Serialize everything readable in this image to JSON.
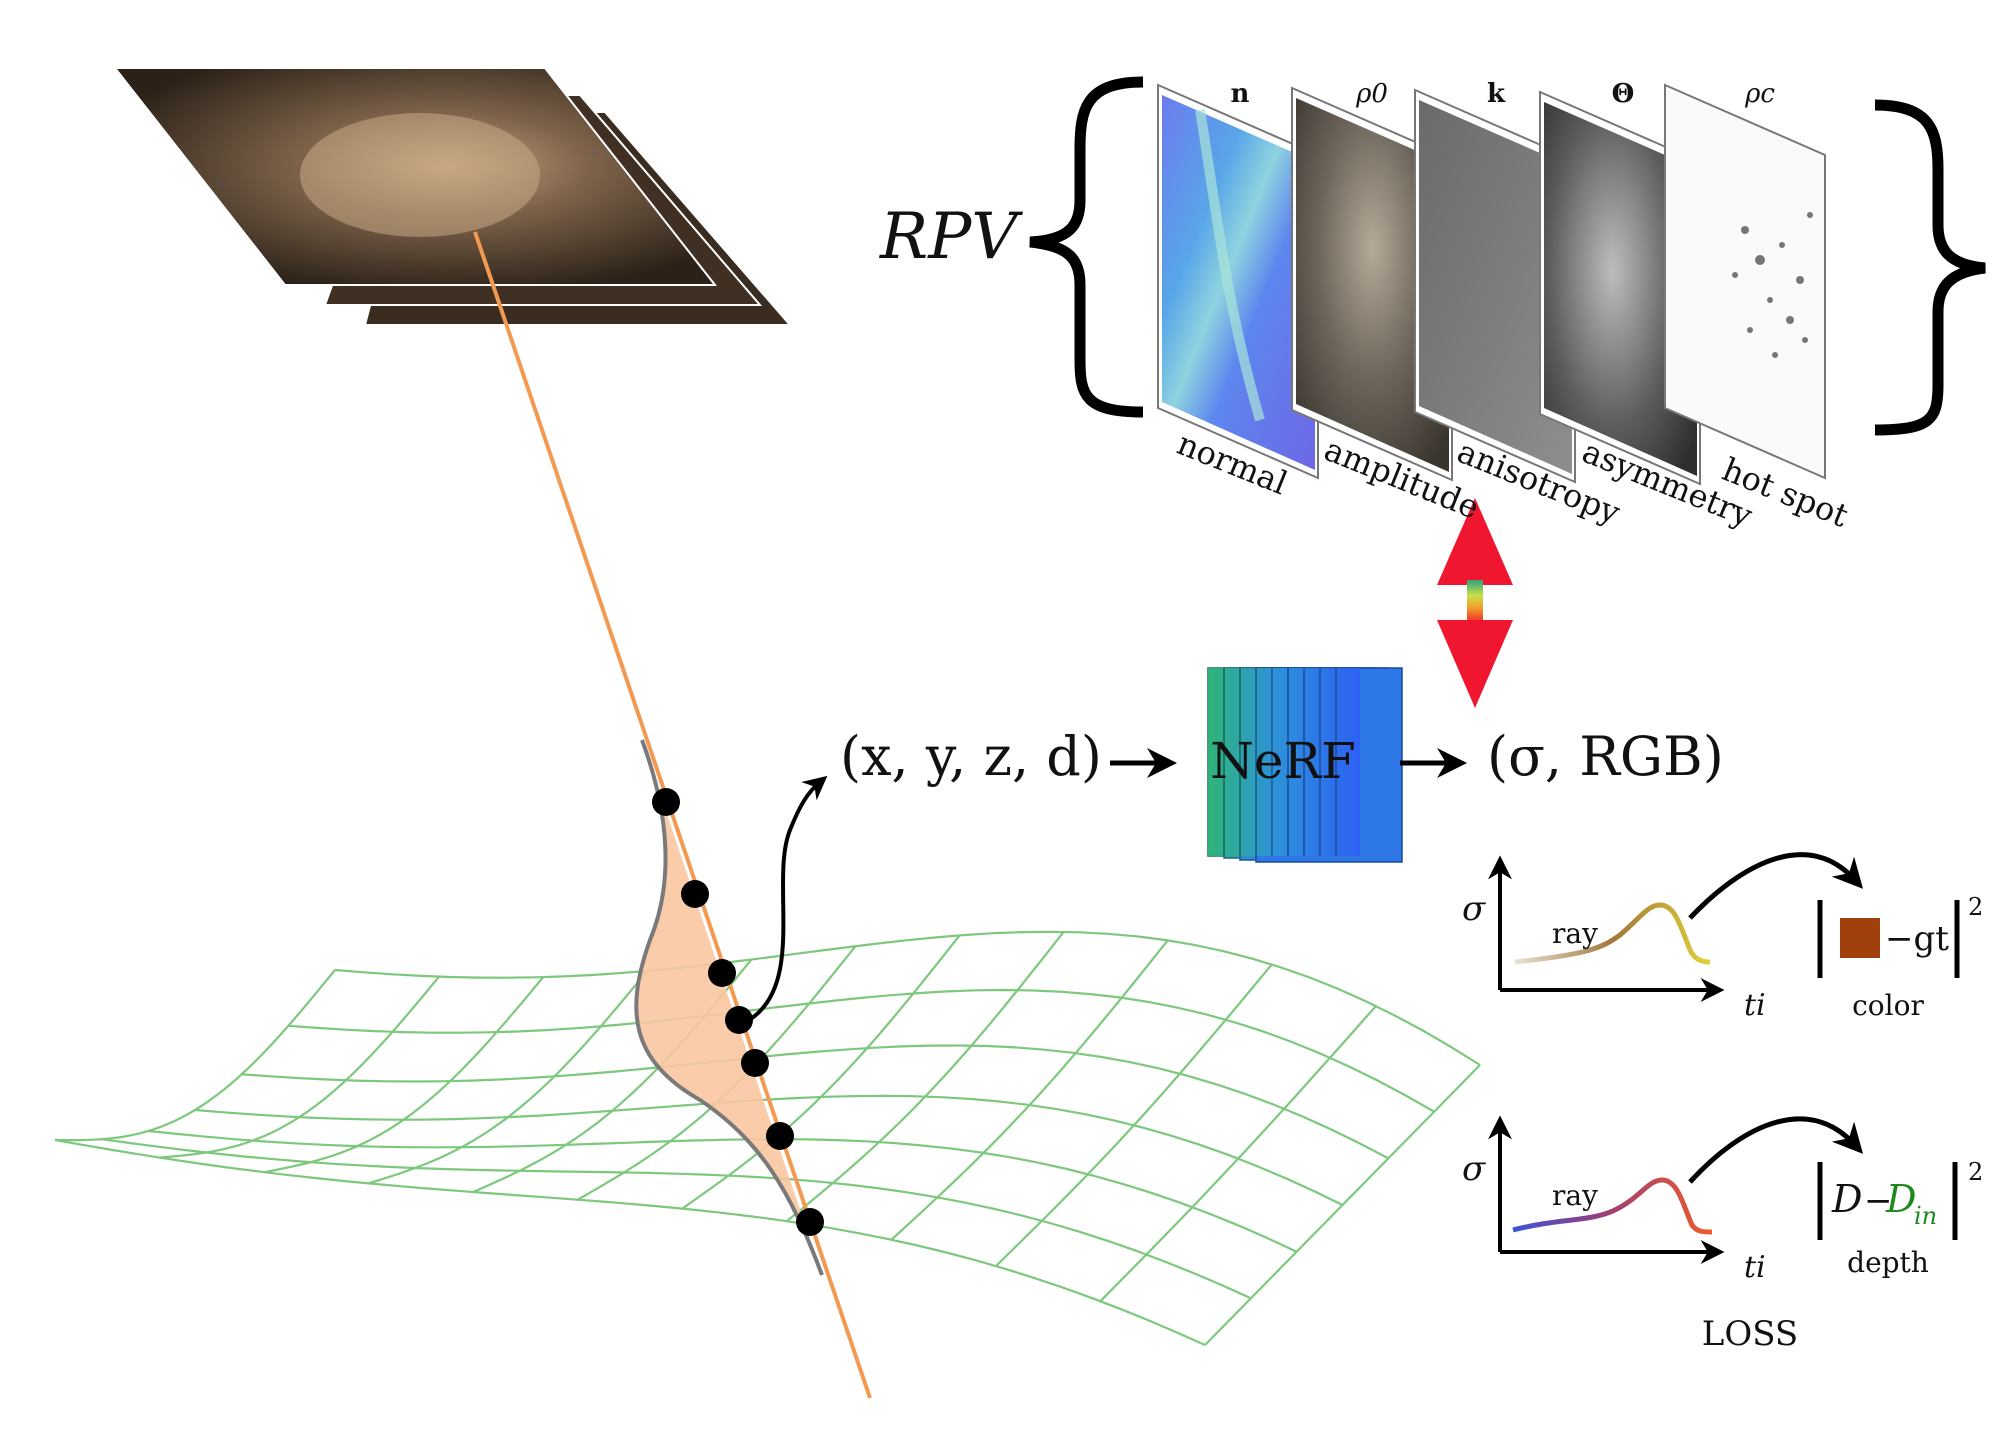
{
  "rpv": {
    "label": "RPV",
    "maps": [
      {
        "symbol": "n",
        "name": "normal"
      },
      {
        "symbol": "ρ0",
        "name": "amplitude"
      },
      {
        "symbol": "k",
        "name": "anisotropy"
      },
      {
        "symbol": "Θ",
        "name": "asymmetry"
      },
      {
        "symbol": "ρc",
        "name": "hot spot"
      }
    ]
  },
  "pipeline": {
    "input": "(x, y, z, d)",
    "network": "NeRF",
    "output": "(σ, RGB)"
  },
  "loss": {
    "color_panel": {
      "y_axis": "σ",
      "x_axis": "ti",
      "curve_label": "ray",
      "term": "−gt",
      "exponent": "2",
      "caption": "color",
      "swatch_color": "#A0410D"
    },
    "depth_panel": {
      "y_axis": "σ",
      "x_axis": "ti",
      "curve_label": "ray",
      "term_left": "D",
      "term_minus": "−",
      "term_right": "D",
      "term_right_sub": "in",
      "exponent": "2",
      "caption": "depth"
    },
    "title": "LOSS"
  },
  "colors": {
    "ray": "#F39A52",
    "grid": "#7DC87D",
    "density_fill": "#F9C6A0",
    "density_edge": "#7A7A7A",
    "arrow_red": "#F0162F",
    "nerf_left": "#2FB777",
    "nerf_right": "#2D5CF5",
    "depth_green": "#1E8A1E"
  }
}
